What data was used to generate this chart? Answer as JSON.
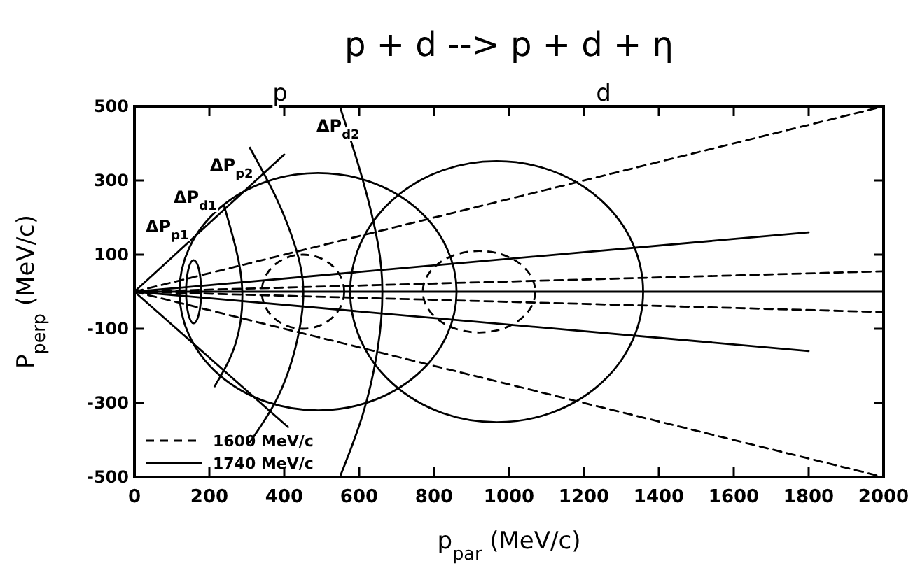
{
  "chart_data": {
    "type": "line",
    "title": "p + d --> p + d + η",
    "xlabel": "p$_{par}$ (MeV/c)",
    "ylabel": "P$_{perp}$ (MeV/c)",
    "xlim": [
      0,
      2000
    ],
    "xticks": [
      0,
      200,
      400,
      600,
      800,
      1000,
      1200,
      1400,
      1600,
      1800,
      2000
    ],
    "ylim": [
      -500,
      500
    ],
    "yticks": [
      -500,
      -300,
      -100,
      100,
      300,
      500
    ],
    "grid": false,
    "legend": "bottom left",
    "marker": "none",
    "color": "#000000",
    "annotations": [
      "p",
      "d",
      "ΔP$_{p1}$",
      "ΔP$_{d1}$",
      "ΔP$_{p2}$",
      "ΔP$_{d2}$"
    ],
    "series": [
      {
        "name": "1600 MeV/c",
        "line_style": "dashed",
        "x": [
          0,
          2000
        ],
        "values": [
          0,
          500
        ]
      },
      {
        "name": "1740 MeV/c",
        "line_style": "solid",
        "x": [
          0,
          1800
        ],
        "values": [
          0,
          160
        ]
      },
      {
        "line_style": "dashed",
        "x": [
          0,
          2000
        ],
        "values": [
          0,
          -500
        ]
      },
      {
        "line_style": "dashed",
        "x": [
          0,
          2000
        ],
        "values": [
          0,
          55
        ]
      },
      {
        "line_style": "dashed",
        "x": [
          0,
          2000
        ],
        "values": [
          0,
          -55
        ]
      },
      {
        "line_style": "solid",
        "x": [
          0,
          1800
        ],
        "values": [
          0,
          -160
        ]
      },
      {
        "line_style": "solid",
        "x": [
          0,
          2000
        ],
        "values": [
          0,
          0
        ]
      },
      {
        "line_style": "solid",
        "x": [
          0,
          400
        ],
        "values": [
          0,
          370
        ]
      },
      {
        "line_style": "solid",
        "x": [
          0,
          410
        ],
        "values": [
          0,
          -365
        ]
      }
    ]
  }
}
